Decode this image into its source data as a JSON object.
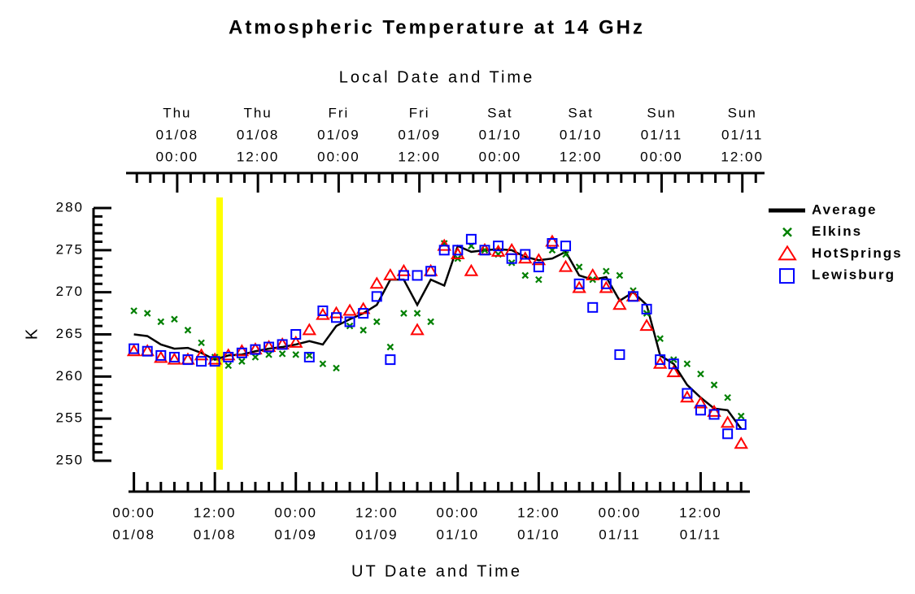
{
  "chart_data": {
    "type": "line",
    "title": "Atmospheric Temperature at 14 GHz",
    "x_label": "UT Date and Time",
    "x2_label": "Local Date and Time",
    "y_label": "K",
    "xlim": [
      -0.8,
      91.3
    ],
    "xticks": [
      {
        "value": 0,
        "label": "00:00"
      },
      {
        "value": 12,
        "label": "12:00"
      },
      {
        "value": 24,
        "label": "00:00"
      },
      {
        "value": 36,
        "label": "12:00"
      },
      {
        "value": 48,
        "label": "00:00"
      },
      {
        "value": 60,
        "label": "12:00"
      },
      {
        "value": 72,
        "label": "00:00"
      },
      {
        "value": 84,
        "label": "12:00"
      }
    ],
    "xtick_dates": [
      "01/08",
      "01/08",
      "01/09",
      "01/09",
      "01/10",
      "01/10",
      "01/11",
      "01/11"
    ],
    "x2lim": [
      -7.6,
      87.3
    ],
    "x2ticks": [
      {
        "value": 0,
        "label": "00:00"
      },
      {
        "value": 12,
        "label": "12:00"
      },
      {
        "value": 24,
        "label": "00:00"
      },
      {
        "value": 36,
        "label": "12:00"
      },
      {
        "value": 48,
        "label": "00:00"
      },
      {
        "value": 60,
        "label": "12:00"
      },
      {
        "value": 72,
        "label": "00:00"
      },
      {
        "value": 84,
        "label": "12:00"
      }
    ],
    "x2tick_days": [
      "Thu",
      "Thu",
      "Fri",
      "Fri",
      "Sat",
      "Sat",
      "Sun",
      "Sun"
    ],
    "x2tick_dates": [
      "01/08",
      "01/08",
      "01/09",
      "01/09",
      "01/10",
      "01/10",
      "01/11",
      "01/11"
    ],
    "minor_ticks_per_major": 6,
    "ylim": [
      250,
      280
    ],
    "yticks": [
      250,
      255,
      260,
      265,
      270,
      275,
      280
    ],
    "y_minor_ticks_per_major": 5,
    "highlight_x": 12.7,
    "highlight_color": "#ffff00",
    "legend": "right",
    "x": [
      0,
      2,
      4,
      6,
      8,
      10,
      12,
      14,
      16,
      18,
      20,
      22,
      24,
      26,
      28,
      30,
      32,
      34,
      36,
      38,
      40,
      42,
      44,
      46,
      48,
      50,
      52,
      54,
      56,
      58,
      60,
      62,
      64,
      66,
      68,
      70,
      72,
      74,
      76,
      78,
      80,
      82,
      84,
      86,
      88,
      90
    ],
    "series": [
      {
        "name": "Average",
        "color": "#000000",
        "marker": "line",
        "values": [
          265.0,
          264.8,
          263.8,
          263.3,
          263.4,
          262.8,
          262.0,
          262.5,
          262.6,
          263.0,
          263.3,
          263.5,
          263.8,
          264.2,
          263.8,
          266.0,
          266.8,
          267.5,
          268.5,
          271.5,
          271.5,
          268.5,
          271.5,
          270.8,
          275.5,
          274.8,
          275.0,
          275.1,
          275.0,
          274.2,
          273.8,
          274.0,
          274.8,
          272.0,
          271.5,
          271.8,
          269.0,
          270.0,
          268.5,
          262.5,
          261.5,
          259.0,
          257.5,
          256.2,
          256.0,
          253.8
        ]
      },
      {
        "name": "Elkins",
        "color": "#008000",
        "marker": "x",
        "values": [
          267.8,
          267.5,
          266.5,
          266.8,
          265.5,
          264.0,
          262.3,
          261.3,
          261.8,
          262.3,
          262.6,
          262.7,
          262.6,
          262.5,
          261.5,
          261.0,
          266.0,
          265.5,
          266.5,
          263.5,
          267.5,
          267.5,
          266.5,
          275.8,
          274.0,
          275.5,
          275.0,
          274.5,
          273.5,
          272.0,
          271.5,
          275.0,
          274.5,
          273.0,
          271.5,
          272.5,
          272.0,
          270.2,
          267.5,
          264.5,
          262.0,
          261.5,
          260.3,
          259.0,
          257.5,
          255.3
        ]
      },
      {
        "name": "HotSprings",
        "color": "#ff0000",
        "marker": "triangle",
        "values": [
          263.0,
          263.0,
          262.2,
          262.0,
          262.0,
          262.5,
          262.0,
          262.5,
          263.0,
          263.2,
          263.5,
          263.8,
          264.0,
          265.5,
          267.3,
          267.5,
          267.8,
          268.0,
          271.0,
          272.0,
          272.5,
          265.5,
          272.5,
          275.5,
          274.5,
          272.5,
          275.0,
          274.8,
          275.0,
          274.0,
          273.8,
          276.0,
          273.0,
          270.5,
          272.0,
          270.5,
          268.5,
          269.5,
          266.0,
          261.5,
          260.5,
          257.5,
          256.8,
          255.8,
          254.5,
          252.0
        ]
      },
      {
        "name": "Lewisburg",
        "color": "#0000ff",
        "marker": "square",
        "values": [
          263.3,
          263.0,
          262.5,
          262.3,
          262.0,
          261.8,
          261.8,
          262.3,
          262.8,
          263.2,
          263.5,
          263.8,
          265.0,
          262.3,
          267.8,
          267.0,
          266.5,
          267.5,
          269.5,
          262.0,
          272.0,
          272.0,
          272.5,
          275.0,
          275.0,
          276.3,
          275.0,
          275.5,
          274.0,
          274.5,
          273.0,
          275.8,
          275.5,
          271.0,
          268.2,
          271.0,
          262.6,
          269.5,
          268.0,
          262.0,
          261.5,
          258.0,
          256.0,
          255.5,
          253.2,
          254.3
        ]
      }
    ]
  }
}
